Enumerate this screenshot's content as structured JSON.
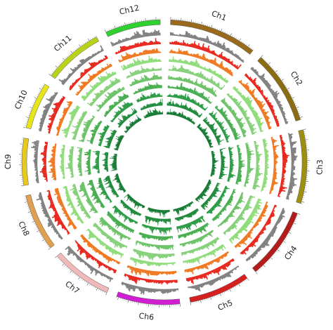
{
  "chart_data": {
    "type": "circos",
    "chromosomes": [
      {
        "name": "Ch1",
        "length": 43,
        "color": "#9a6a1c"
      },
      {
        "name": "Ch2",
        "length": 36,
        "color": "#8a6d12"
      },
      {
        "name": "Ch3",
        "length": 36,
        "color": "#9e8f12"
      },
      {
        "name": "Ch4",
        "length": 35,
        "color": "#b41c1c"
      },
      {
        "name": "Ch5",
        "length": 30,
        "color": "#d62020"
      },
      {
        "name": "Ch6",
        "length": 31,
        "color": "#d21ed2"
      },
      {
        "name": "Ch7",
        "length": 30,
        "color": "#f0b8b8"
      },
      {
        "name": "Ch8",
        "length": 28,
        "color": "#e0a050"
      },
      {
        "name": "Ch9",
        "length": 23,
        "color": "#e6c81e"
      },
      {
        "name": "Ch10",
        "length": 23,
        "color": "#e8e41a"
      },
      {
        "name": "Ch11",
        "length": 29,
        "color": "#b8d21a"
      },
      {
        "name": "Ch12",
        "length": 27,
        "color": "#2ed12e"
      }
    ],
    "tracks": [
      {
        "color": "#808080"
      },
      {
        "color": "#e8271d"
      },
      {
        "color": "#f07820"
      },
      {
        "color": "#8fdc7a"
      },
      {
        "color": "#86d07a"
      },
      {
        "color": "#6cc267"
      },
      {
        "color": "#48ad50"
      },
      {
        "color": "#2b9b45"
      },
      {
        "color": "#1f8a3c"
      },
      {
        "color": "#167a35"
      }
    ]
  }
}
